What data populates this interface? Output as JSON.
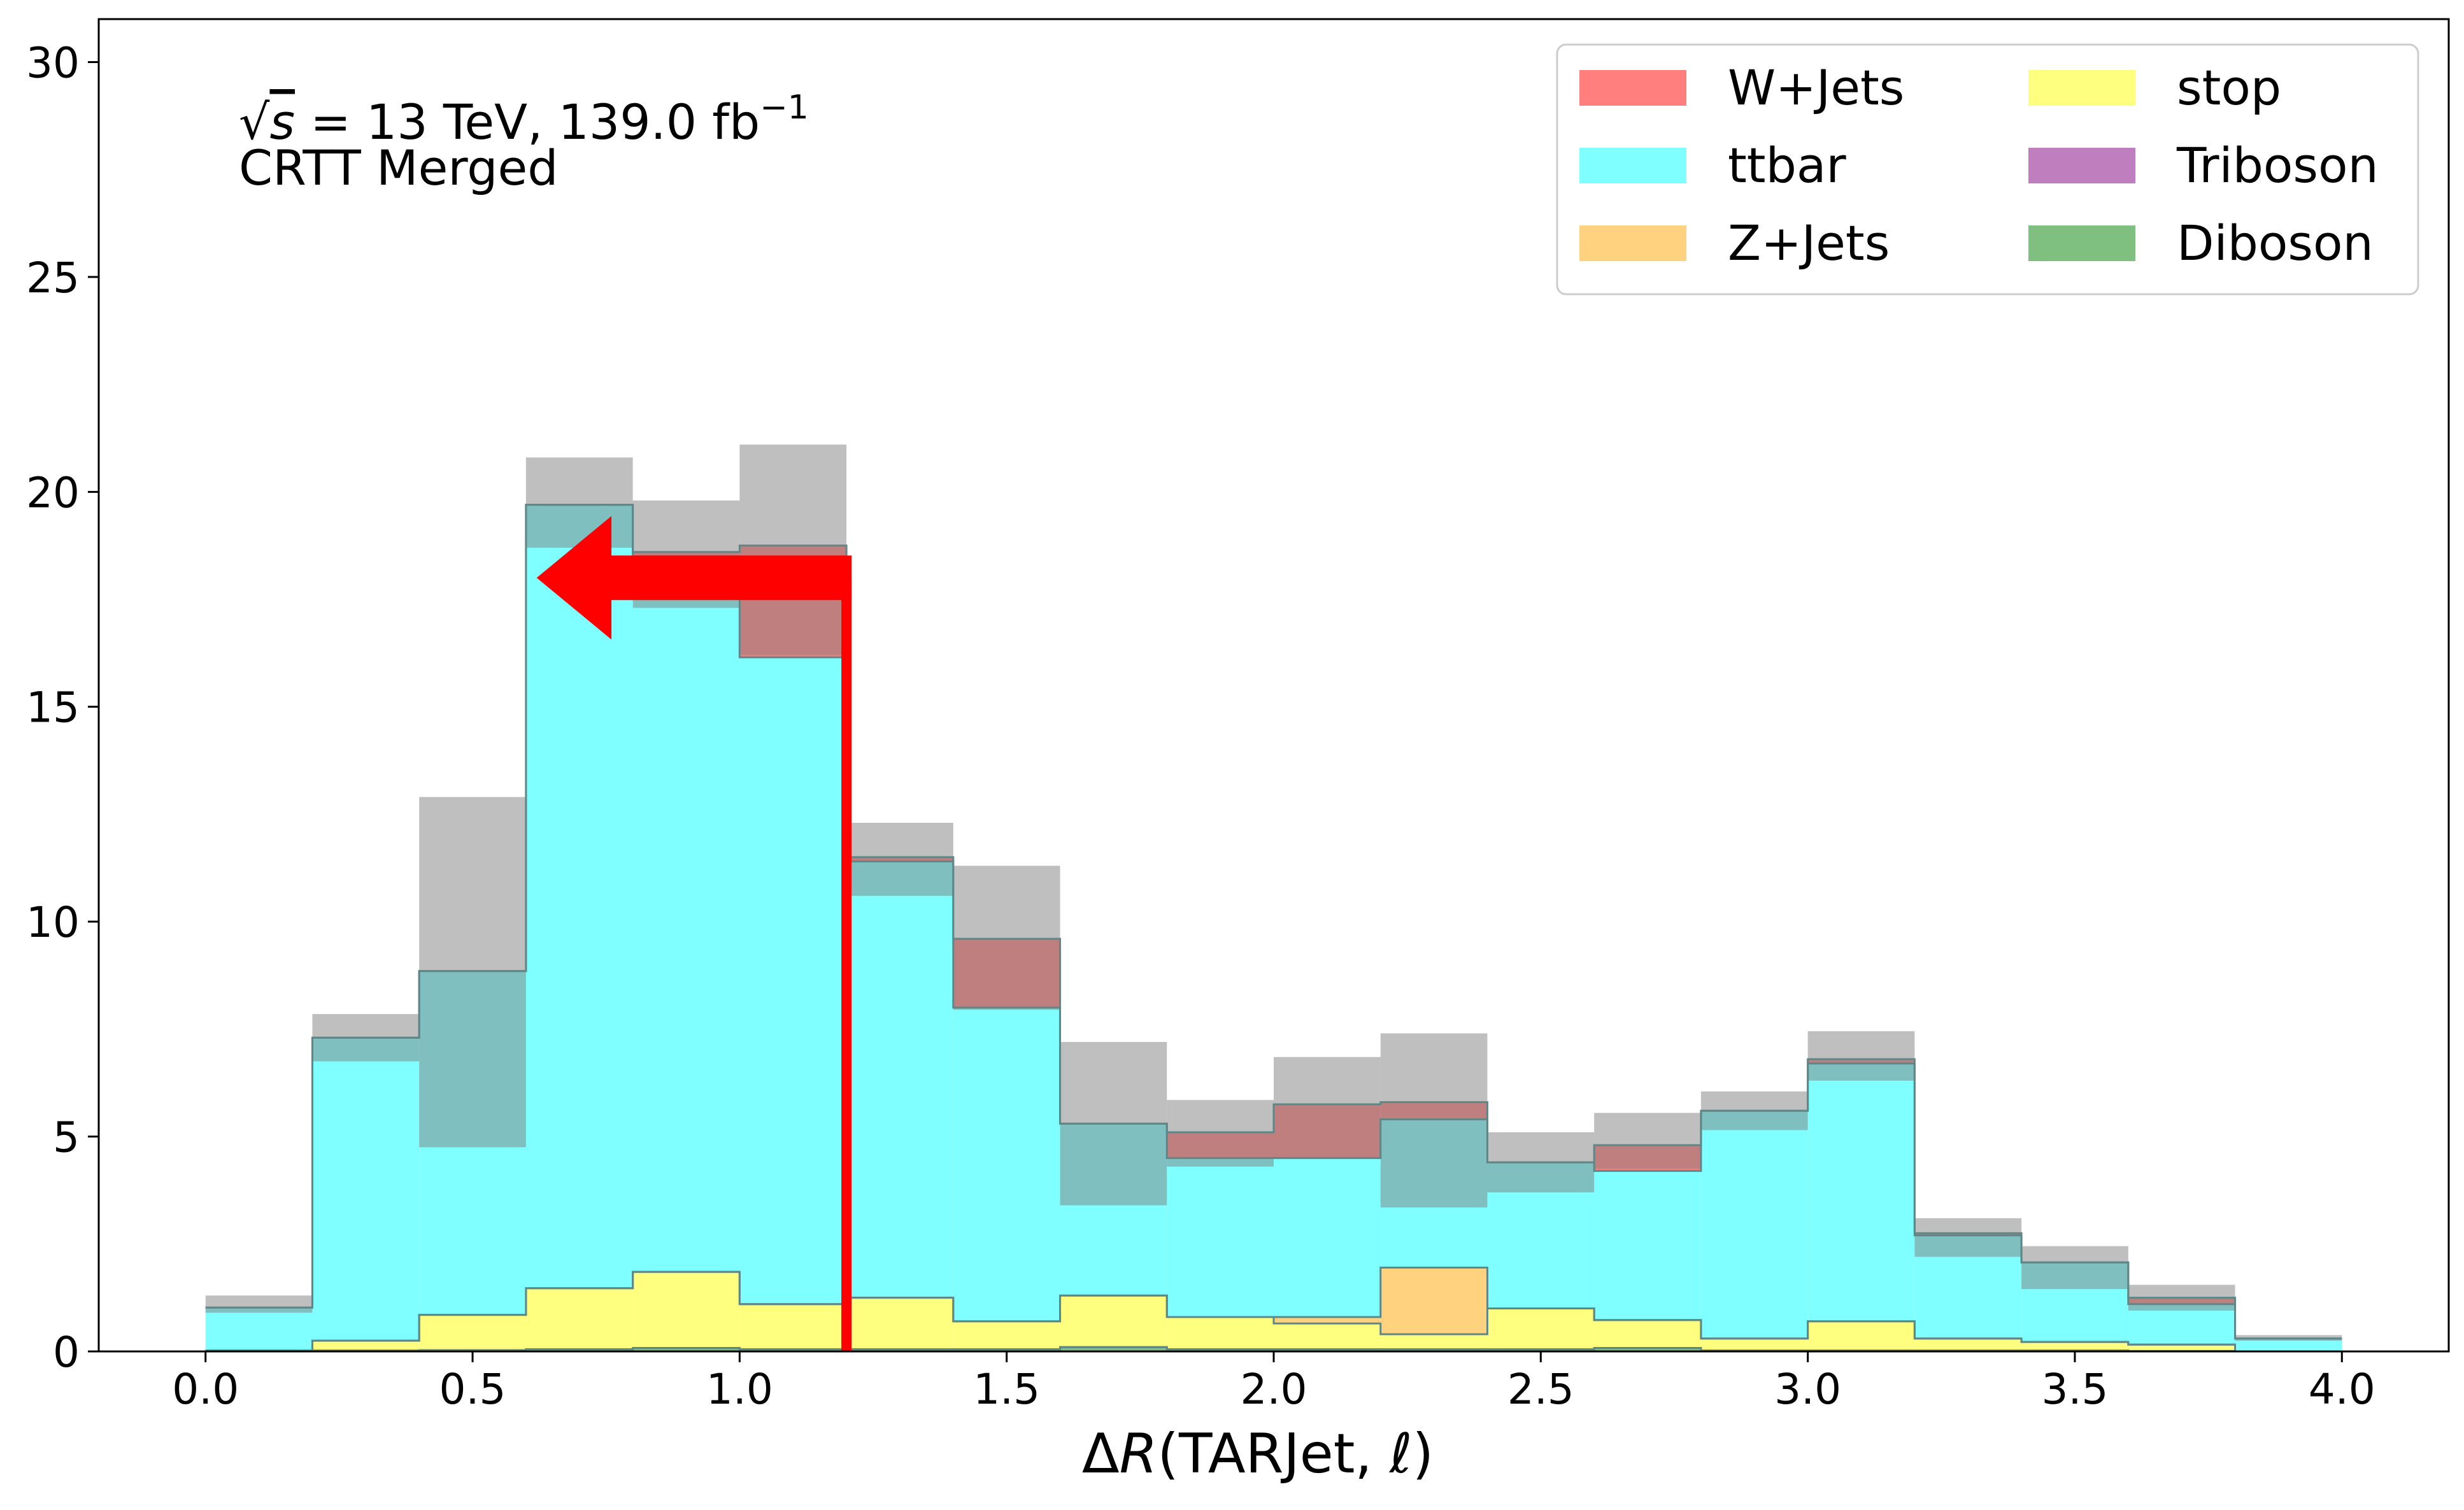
{
  "chart_data": {
    "type": "bar",
    "stacked": true,
    "histogram": true,
    "bin_edges": [
      0.0,
      0.2,
      0.4,
      0.6,
      0.8,
      1.0,
      1.2,
      1.4,
      1.6,
      1.8,
      2.0,
      2.2,
      2.4,
      2.6,
      2.8,
      3.0,
      3.2,
      3.4,
      3.6,
      3.8,
      4.0
    ],
    "xlabel": "ΔR(TARJet, ℓ)",
    "xlabel_parts": {
      "delta": "Δ",
      "R": "R",
      "args": "(TARJet, ",
      "ell": "ℓ",
      "close": ")"
    },
    "xlim": [
      -0.2,
      4.2
    ],
    "ylim": [
      0,
      31
    ],
    "xticks": [
      0.0,
      0.5,
      1.0,
      1.5,
      2.0,
      2.5,
      3.0,
      3.5,
      4.0
    ],
    "xtick_labels": [
      "0.0",
      "0.5",
      "1.0",
      "1.5",
      "2.0",
      "2.5",
      "3.0",
      "3.5",
      "4.0"
    ],
    "yticks": [
      0,
      5,
      10,
      15,
      20,
      25,
      30
    ],
    "ytick_labels": [
      "0",
      "5",
      "10",
      "15",
      "20",
      "25",
      "30"
    ],
    "grid": false,
    "legend_position": "top-right",
    "legend_columns": 2,
    "annotation": {
      "line1_sqrt": "√",
      "line1_s": "s",
      "line1_rest": " = 13 TeV, 139.0 fb",
      "line1_sup": "−1",
      "line2": "CRTT Merged"
    },
    "cut": {
      "x": 1.2,
      "direction": "left",
      "color": "#ff0000"
    },
    "series": [
      {
        "name": "Diboson",
        "color": "#7fbf7f",
        "values": [
          0.02,
          0.02,
          0.03,
          0.05,
          0.08,
          0.05,
          0.05,
          0.05,
          0.1,
          0.05,
          0.05,
          0.05,
          0.05,
          0.08,
          0.02,
          0.02,
          0.02,
          0.02,
          0.01,
          0.0
        ]
      },
      {
        "name": "Triboson",
        "color": "#bf7fbf",
        "values": [
          0.0,
          0.0,
          0.0,
          0.0,
          0.0,
          0.0,
          0.0,
          0.0,
          0.0,
          0.0,
          0.0,
          0.0,
          0.0,
          0.0,
          0.0,
          0.0,
          0.0,
          0.0,
          0.0,
          0.0
        ]
      },
      {
        "name": "stop",
        "color": "#ffff7f",
        "values": [
          0.0,
          0.23,
          0.82,
          1.42,
          1.77,
          1.05,
          1.2,
          0.65,
          1.2,
          0.75,
          0.6,
          0.35,
          0.95,
          0.65,
          0.28,
          0.68,
          0.28,
          0.2,
          0.15,
          0.0
        ]
      },
      {
        "name": "Z+Jets",
        "color": "#ffd27f",
        "values": [
          0.0,
          0.0,
          0.0,
          0.0,
          0.0,
          0.0,
          0.0,
          0.0,
          0.0,
          0.0,
          0.15,
          1.55,
          0.0,
          0.0,
          0.0,
          0.0,
          0.0,
          0.0,
          0.0,
          0.0
        ]
      },
      {
        "name": "ttbar",
        "color": "#7fffff",
        "values": [
          1.0,
          7.05,
          8.0,
          18.23,
          16.65,
          15.05,
          10.15,
          7.3,
          4.0,
          3.7,
          3.7,
          3.45,
          3.4,
          3.47,
          5.3,
          6.0,
          2.4,
          1.85,
          0.94,
          0.3
        ]
      },
      {
        "name": "W+Jets",
        "color": "#ff7f7f",
        "values": [
          0.0,
          0.0,
          0.0,
          0.0,
          0.1,
          2.6,
          0.1,
          1.6,
          0.0,
          0.6,
          1.25,
          0.4,
          0.0,
          0.6,
          0.0,
          0.1,
          0.05,
          0.0,
          0.15,
          0.0
        ]
      }
    ],
    "uncertainty_band": {
      "color": "#808080",
      "low": [
        0.9,
        6.75,
        4.75,
        18.7,
        17.3,
        16.2,
        10.6,
        7.95,
        3.4,
        4.3,
        4.5,
        3.35,
        3.7,
        4.25,
        5.15,
        6.3,
        2.2,
        1.45,
        0.95,
        0.25
      ],
      "high": [
        1.3,
        7.85,
        12.9,
        20.8,
        19.8,
        21.1,
        12.3,
        11.3,
        7.2,
        5.85,
        6.85,
        7.4,
        5.1,
        5.55,
        6.05,
        7.45,
        3.1,
        2.45,
        1.55,
        0.38
      ]
    },
    "legend_order": [
      "W+Jets",
      "ttbar",
      "Z+Jets",
      "stop",
      "Triboson",
      "Diboson"
    ]
  }
}
